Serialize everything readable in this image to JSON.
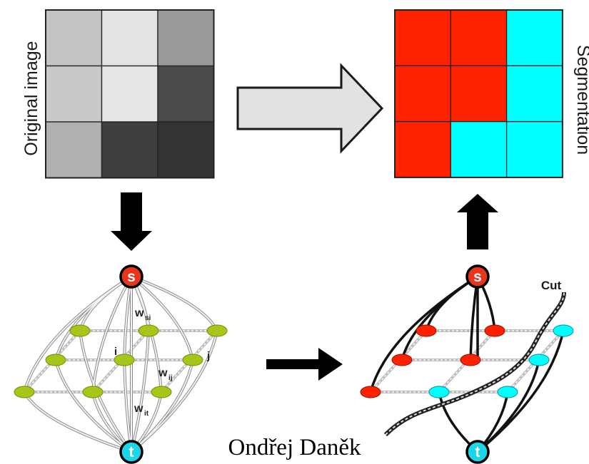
{
  "labels": {
    "original": "Original image",
    "segmentation": "Segmentation",
    "source_node": "s",
    "sink_node": "t",
    "w_si_main": "w",
    "w_si_sub": "si",
    "w_ij_main": "w",
    "w_ij_sub": "ij",
    "w_it_main": "w",
    "w_it_sub": "it",
    "node_i": "i",
    "node_j": "j",
    "cut": "Cut",
    "author": "Ondřej Daněk"
  },
  "original_grid": {
    "rows": 3,
    "cols": 3,
    "cells": [
      "#c4c4c4",
      "#e3e3e3",
      "#999999",
      "#c9c9c9",
      "#e6e6e6",
      "#4a4a4a",
      "#b0b0b0",
      "#3f3f3f",
      "#333333"
    ]
  },
  "segmentation_grid": {
    "rows": 3,
    "cols": 3,
    "cells": [
      "#ff2200",
      "#ff2200",
      "#00ffff",
      "#ff2200",
      "#ff2200",
      "#00ffff",
      "#ff2200",
      "#00ffff",
      "#00ffff"
    ]
  },
  "colors": {
    "source": "#e8361c",
    "sink": "#1ad7e8",
    "pixel_node_original": "#a6c71a",
    "label_red": "#ff2200",
    "label_cyan": "#00ffff",
    "arrow_fill_large": "#e2e2e2",
    "arrow_fill_small": "#000000"
  },
  "icons": {
    "big_arrow": "arrow-right-outline",
    "down_arrow": "arrow-down",
    "up_arrow": "arrow-up",
    "mid_arrow": "arrow-right"
  }
}
